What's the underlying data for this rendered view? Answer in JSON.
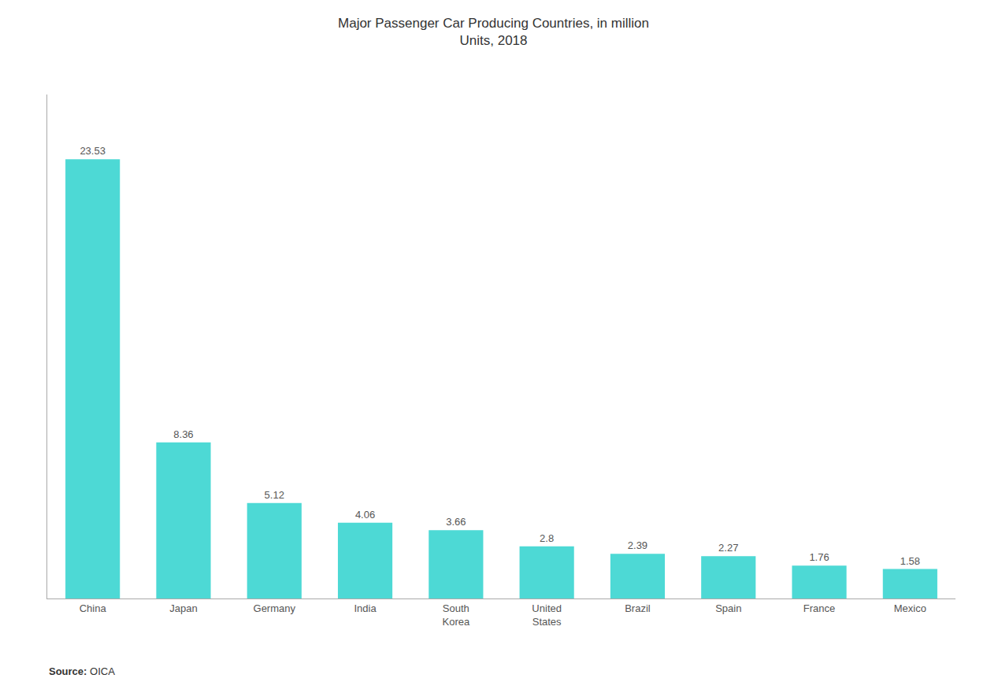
{
  "chart_data": {
    "type": "bar",
    "title": "Major Passenger Car Producing Countries, in million\nUnits, 2018",
    "categories": [
      "China",
      "Japan",
      "Germany",
      "India",
      "South\nKorea",
      "United\nStates",
      "Brazil",
      "Spain",
      "France",
      "Mexico"
    ],
    "values": [
      23.53,
      8.36,
      5.12,
      4.06,
      3.66,
      2.8,
      2.39,
      2.27,
      1.76,
      1.58
    ],
    "color": "#4DD9D5",
    "ylim": [
      0,
      27
    ],
    "grid": false,
    "data_labels": true,
    "tick_labels": "x",
    "annotations": [
      {
        "bold": "Source:",
        "text": "OICA"
      }
    ]
  }
}
